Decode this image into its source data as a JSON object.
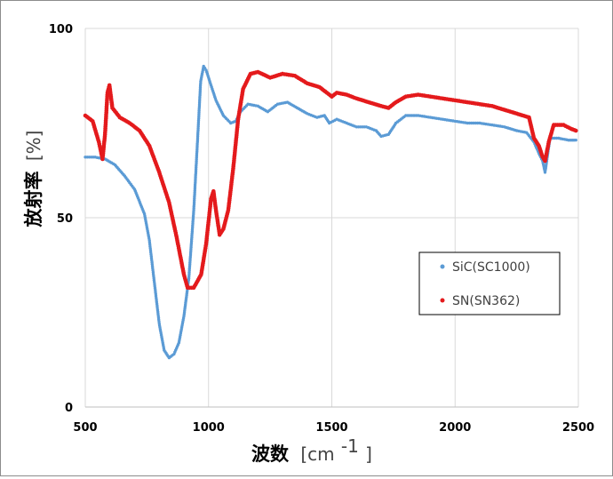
{
  "chart_data": {
    "type": "scatter",
    "xlabel": "波数",
    "xunit_open": "[cm",
    "xunit_exp": "-1",
    "xunit_close": "]",
    "ylabel": "放射率",
    "yunit": "[%]",
    "xlim": [
      500,
      2500
    ],
    "ylim": [
      0,
      100
    ],
    "xticks": [
      "500",
      "1000",
      "1500",
      "2000",
      "2500"
    ],
    "yticks": [
      "0",
      "50",
      "100"
    ],
    "grid": true,
    "legend_position": "right",
    "series": [
      {
        "name": "SiC(SC1000)",
        "color": "#5b9bd5",
        "points": [
          [
            500,
            66
          ],
          [
            540,
            66
          ],
          [
            580,
            65.5
          ],
          [
            620,
            64
          ],
          [
            660,
            61
          ],
          [
            700,
            57.5
          ],
          [
            740,
            51
          ],
          [
            760,
            44
          ],
          [
            780,
            33
          ],
          [
            800,
            22
          ],
          [
            820,
            15
          ],
          [
            840,
            13
          ],
          [
            860,
            14
          ],
          [
            880,
            17
          ],
          [
            900,
            24
          ],
          [
            920,
            34
          ],
          [
            940,
            52
          ],
          [
            955,
            70
          ],
          [
            968,
            86
          ],
          [
            980,
            90
          ],
          [
            990,
            89
          ],
          [
            1005,
            86
          ],
          [
            1030,
            81
          ],
          [
            1060,
            77
          ],
          [
            1090,
            75
          ],
          [
            1110,
            75.5
          ],
          [
            1130,
            78
          ],
          [
            1160,
            80
          ],
          [
            1200,
            79.5
          ],
          [
            1240,
            78
          ],
          [
            1280,
            80
          ],
          [
            1320,
            80.5
          ],
          [
            1360,
            79
          ],
          [
            1400,
            77.5
          ],
          [
            1440,
            76.5
          ],
          [
            1470,
            77
          ],
          [
            1490,
            75
          ],
          [
            1520,
            76
          ],
          [
            1560,
            75
          ],
          [
            1600,
            74
          ],
          [
            1640,
            74
          ],
          [
            1680,
            73
          ],
          [
            1700,
            71.5
          ],
          [
            1730,
            72
          ],
          [
            1760,
            75
          ],
          [
            1800,
            77
          ],
          [
            1850,
            77
          ],
          [
            1900,
            76.5
          ],
          [
            1950,
            76
          ],
          [
            2000,
            75.5
          ],
          [
            2050,
            75
          ],
          [
            2100,
            75
          ],
          [
            2150,
            74.5
          ],
          [
            2200,
            74
          ],
          [
            2250,
            73
          ],
          [
            2290,
            72.5
          ],
          [
            2320,
            70
          ],
          [
            2340,
            67
          ],
          [
            2355,
            65
          ],
          [
            2365,
            62
          ],
          [
            2385,
            71
          ],
          [
            2420,
            71
          ],
          [
            2460,
            70.5
          ],
          [
            2490,
            70.5
          ]
        ]
      },
      {
        "name": "SN(SN362)",
        "color": "#e41a1c",
        "points": [
          [
            500,
            77
          ],
          [
            530,
            75.5
          ],
          [
            555,
            70
          ],
          [
            570,
            65.5
          ],
          [
            580,
            72
          ],
          [
            590,
            83
          ],
          [
            598,
            85
          ],
          [
            610,
            79
          ],
          [
            640,
            76.5
          ],
          [
            680,
            75
          ],
          [
            720,
            73
          ],
          [
            760,
            69
          ],
          [
            800,
            62
          ],
          [
            840,
            54
          ],
          [
            870,
            45
          ],
          [
            900,
            35
          ],
          [
            915,
            31.5
          ],
          [
            940,
            31.5
          ],
          [
            970,
            35
          ],
          [
            990,
            43
          ],
          [
            1010,
            55
          ],
          [
            1020,
            57
          ],
          [
            1030,
            52
          ],
          [
            1045,
            45.5
          ],
          [
            1060,
            47
          ],
          [
            1080,
            52
          ],
          [
            1100,
            63
          ],
          [
            1120,
            76
          ],
          [
            1140,
            84
          ],
          [
            1170,
            88
          ],
          [
            1200,
            88.5
          ],
          [
            1250,
            87
          ],
          [
            1300,
            88
          ],
          [
            1350,
            87.5
          ],
          [
            1400,
            85.5
          ],
          [
            1450,
            84.5
          ],
          [
            1480,
            83
          ],
          [
            1500,
            82
          ],
          [
            1520,
            83
          ],
          [
            1560,
            82.5
          ],
          [
            1600,
            81.5
          ],
          [
            1650,
            80.5
          ],
          [
            1700,
            79.5
          ],
          [
            1730,
            79
          ],
          [
            1760,
            80.5
          ],
          [
            1800,
            82
          ],
          [
            1850,
            82.5
          ],
          [
            1900,
            82
          ],
          [
            1950,
            81.5
          ],
          [
            2000,
            81
          ],
          [
            2050,
            80.5
          ],
          [
            2100,
            80
          ],
          [
            2150,
            79.5
          ],
          [
            2200,
            78.5
          ],
          [
            2250,
            77.5
          ],
          [
            2300,
            76.5
          ],
          [
            2320,
            71
          ],
          [
            2340,
            69
          ],
          [
            2355,
            66
          ],
          [
            2365,
            65
          ],
          [
            2380,
            70
          ],
          [
            2400,
            74.5
          ],
          [
            2440,
            74.5
          ],
          [
            2470,
            73.5
          ],
          [
            2490,
            73
          ]
        ]
      }
    ]
  }
}
